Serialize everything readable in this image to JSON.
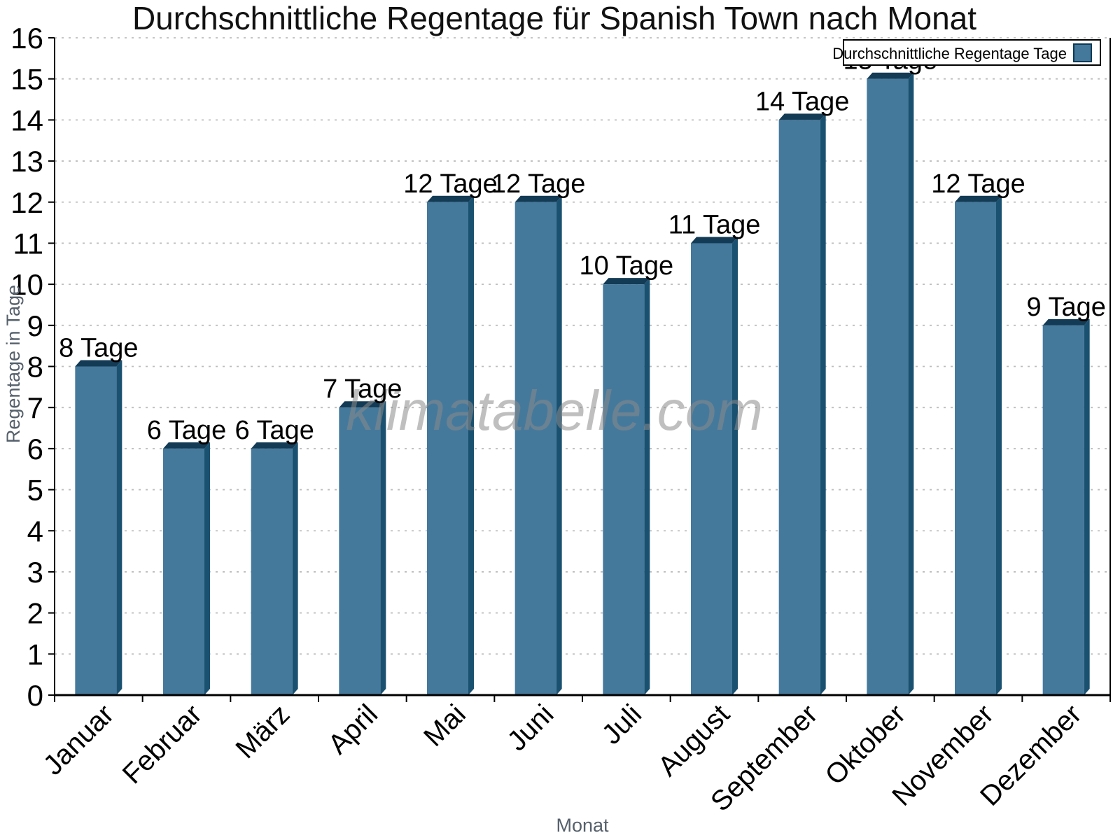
{
  "chart_data": {
    "type": "bar",
    "title": "Durchschnittliche Regentage für Spanish Town nach Monat",
    "xlabel": "Monat",
    "ylabel": "Regentage in Tage",
    "legend": "Durchschnittliche Regentage Tage",
    "legend_position": "top-right",
    "categories": [
      "Januar",
      "Februar",
      "März",
      "April",
      "Mai",
      "Juni",
      "Juli",
      "August",
      "September",
      "Oktober",
      "November",
      "Dezember"
    ],
    "values": [
      8,
      6,
      6,
      7,
      12,
      12,
      10,
      11,
      14,
      15,
      12,
      9
    ],
    "value_label_suffix": " Tage",
    "ylim": [
      0,
      16
    ],
    "ytick_step": 1,
    "grid": "dotted-horizontal",
    "bar_style": "3d-bevel",
    "colors": {
      "bar_face": "#44799C",
      "bar_side": "#1B5170",
      "bar_top": "#133B55",
      "legend_swatch_border": "#0D3A55",
      "axis": "#000000",
      "grid": "#bdbdbd",
      "axis_title": "#55606b",
      "value_label": "#000000"
    }
  },
  "watermark": {
    "text": "klimatabelle.com",
    "color": "#8a8a8a"
  }
}
